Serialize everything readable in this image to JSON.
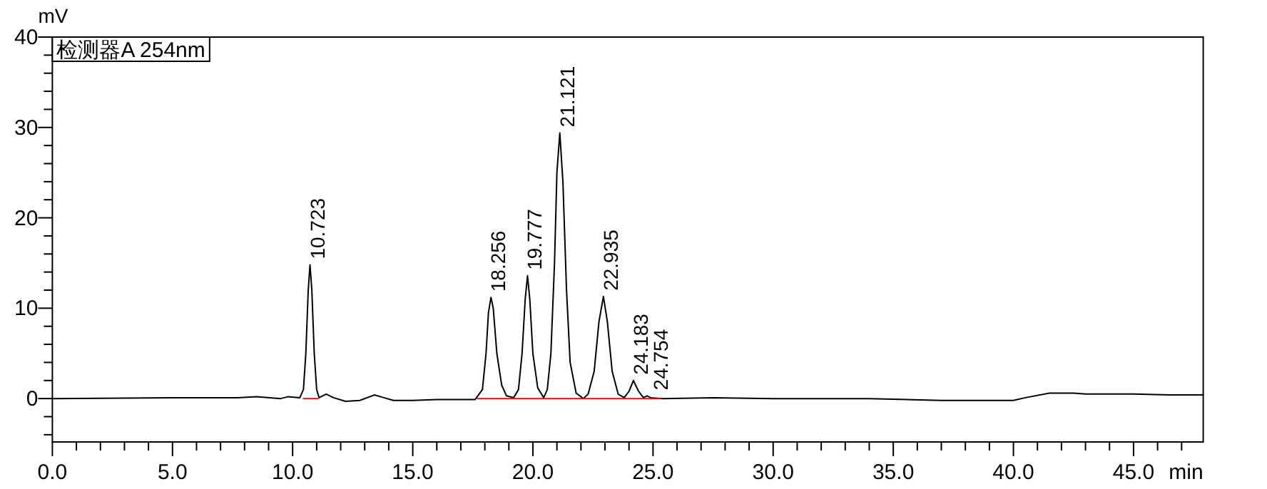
{
  "chart_data": {
    "type": "line",
    "ylabel": "mV",
    "xlabel": "min",
    "legend": "top left",
    "grid": false,
    "line_style": "solid",
    "xlim": [
      0,
      47.9
    ],
    "ylim": [
      -4.8,
      40
    ],
    "xticks": [
      {
        "value": 0,
        "label": "0.0"
      },
      {
        "value": 1,
        "label": null
      },
      {
        "value": 2,
        "label": null
      },
      {
        "value": 3,
        "label": null
      },
      {
        "value": 4,
        "label": null
      },
      {
        "value": 5,
        "label": "5.0"
      },
      {
        "value": 6,
        "label": null
      },
      {
        "value": 7,
        "label": null
      },
      {
        "value": 8,
        "label": null
      },
      {
        "value": 9,
        "label": null
      },
      {
        "value": 10,
        "label": "10.0"
      },
      {
        "value": 11,
        "label": null
      },
      {
        "value": 12,
        "label": null
      },
      {
        "value": 13,
        "label": null
      },
      {
        "value": 14,
        "label": null
      },
      {
        "value": 15,
        "label": "15.0"
      },
      {
        "value": 16,
        "label": null
      },
      {
        "value": 17,
        "label": null
      },
      {
        "value": 18,
        "label": null
      },
      {
        "value": 19,
        "label": null
      },
      {
        "value": 20,
        "label": "20.0"
      },
      {
        "value": 21,
        "label": null
      },
      {
        "value": 22,
        "label": null
      },
      {
        "value": 23,
        "label": null
      },
      {
        "value": 24,
        "label": null
      },
      {
        "value": 25,
        "label": "25.0"
      },
      {
        "value": 26,
        "label": null
      },
      {
        "value": 27,
        "label": null
      },
      {
        "value": 28,
        "label": null
      },
      {
        "value": 29,
        "label": null
      },
      {
        "value": 30,
        "label": "30.0"
      },
      {
        "value": 31,
        "label": null
      },
      {
        "value": 32,
        "label": null
      },
      {
        "value": 33,
        "label": null
      },
      {
        "value": 34,
        "label": null
      },
      {
        "value": 35,
        "label": "35.0"
      },
      {
        "value": 36,
        "label": null
      },
      {
        "value": 37,
        "label": null
      },
      {
        "value": 38,
        "label": null
      },
      {
        "value": 39,
        "label": null
      },
      {
        "value": 40,
        "label": "40.0"
      },
      {
        "value": 41,
        "label": null
      },
      {
        "value": 42,
        "label": null
      },
      {
        "value": 43,
        "label": null
      },
      {
        "value": 44,
        "label": null
      },
      {
        "value": 45,
        "label": "45.0"
      },
      {
        "value": 46,
        "label": null
      },
      {
        "value": 47,
        "label": null
      }
    ],
    "yticks": [
      {
        "value": -4,
        "label": null
      },
      {
        "value": -2,
        "label": null
      },
      0,
      {
        "value": 2,
        "label": null
      },
      {
        "value": 4,
        "label": null
      },
      {
        "value": 6,
        "label": null
      },
      {
        "value": 8,
        "label": null
      },
      10,
      {
        "value": 12,
        "label": null
      },
      {
        "value": 14,
        "label": null
      },
      {
        "value": 16,
        "label": null
      },
      {
        "value": 18,
        "label": null
      },
      20,
      {
        "value": 22,
        "label": null
      },
      {
        "value": 24,
        "label": null
      },
      {
        "value": 26,
        "label": null
      },
      {
        "value": 28,
        "label": null
      },
      30,
      {
        "value": 32,
        "label": null
      },
      {
        "value": 34,
        "label": null
      },
      {
        "value": 36,
        "label": null
      },
      {
        "value": 38,
        "label": null
      },
      40
    ],
    "series": [
      {
        "name": "检测器A 254nm",
        "color": "#000000",
        "x": [
          0,
          5,
          7.7,
          8.5,
          9.5,
          9.8,
          10.3,
          10.45,
          10.55,
          10.65,
          10.723,
          10.8,
          10.9,
          11.0,
          11.1,
          11.4,
          11.7,
          12.2,
          12.8,
          13.4,
          13.8,
          14.2,
          15,
          16,
          17.6,
          17.9,
          18.05,
          18.15,
          18.256,
          18.35,
          18.5,
          18.7,
          18.9,
          19.2,
          19.4,
          19.55,
          19.68,
          19.777,
          19.87,
          20,
          20.2,
          20.45,
          20.6,
          20.75,
          20.9,
          21.0,
          21.121,
          21.25,
          21.4,
          21.55,
          21.8,
          22.1,
          22.3,
          22.55,
          22.75,
          22.935,
          23.1,
          23.3,
          23.55,
          23.8,
          24.0,
          24.183,
          24.4,
          24.6,
          24.754,
          24.9,
          25.4,
          27.5,
          30,
          34,
          37,
          40,
          40.5,
          41.5,
          42.5,
          43,
          45,
          46.5,
          47.9
        ],
        "values": [
          0,
          0.1,
          0.1,
          0.2,
          0,
          0.2,
          0.1,
          1,
          5,
          12,
          14.8,
          12,
          5,
          1,
          0.1,
          0.5,
          0.1,
          -0.3,
          -0.2,
          0.4,
          0.1,
          -0.2,
          -0.2,
          -0.1,
          -0.1,
          1,
          5,
          9.5,
          11.2,
          10,
          5,
          1.5,
          0.3,
          0.1,
          1,
          5,
          11,
          13.6,
          11,
          5,
          1.2,
          0.1,
          1,
          5,
          15,
          25,
          29.4,
          24,
          12,
          4,
          0.6,
          0,
          0.5,
          3,
          8.5,
          11.3,
          8.5,
          3,
          0.5,
          0.1,
          0.8,
          2.0,
          0.8,
          0.1,
          0.3,
          0.1,
          0,
          0.1,
          0,
          0,
          -0.2,
          -0.2,
          0.1,
          0.6,
          0.6,
          0.5,
          0.5,
          0.4,
          0.4
        ]
      },
      {
        "color": "#ff0000",
        "x": [
          10.45,
          11.05
        ],
        "values": [
          0,
          0
        ]
      },
      {
        "color": "#ff0000",
        "x": [
          17.7,
          25.3
        ],
        "values": [
          0,
          0
        ]
      }
    ],
    "annotations": [
      {
        "text": "10.723",
        "x": 10.723,
        "y": 14.8
      },
      {
        "text": "18.256",
        "x": 18.256,
        "y": 11.2
      },
      {
        "text": "19.777",
        "x": 19.777,
        "y": 13.6
      },
      {
        "text": "21.121",
        "x": 21.121,
        "y": 29.4
      },
      {
        "text": "22.935",
        "x": 22.935,
        "y": 11.3
      },
      {
        "text": "24.183",
        "x": 24.183,
        "y": 2.0
      },
      {
        "text": "24.754",
        "x": 24.754,
        "y": 0.3
      }
    ]
  }
}
